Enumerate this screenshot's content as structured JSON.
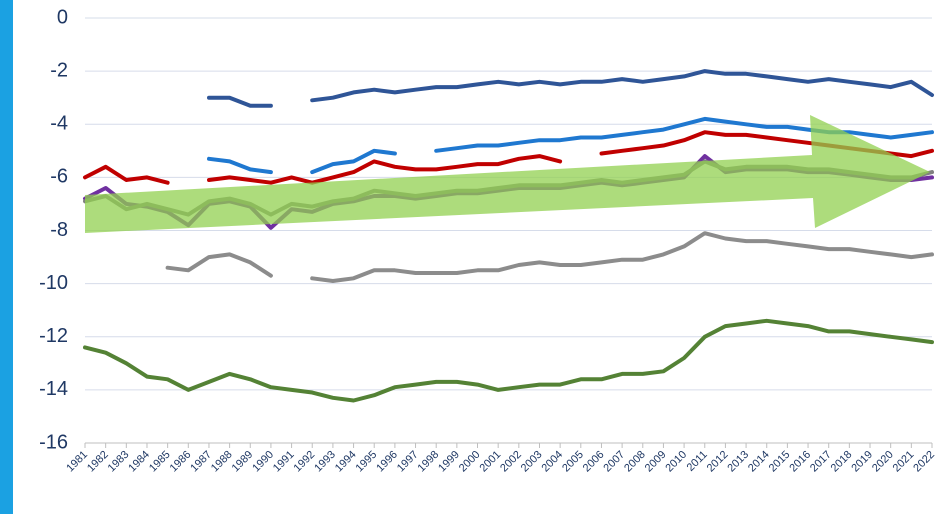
{
  "chart_data": {
    "type": "line",
    "categories": [
      "1981",
      "1982",
      "1983",
      "1984",
      "1985",
      "1986",
      "1987",
      "1988",
      "1989",
      "1990",
      "1991",
      "1992",
      "1993",
      "1994",
      "1995",
      "1996",
      "1997",
      "1998",
      "1999",
      "2000",
      "2001",
      "2002",
      "2003",
      "2004",
      "2005",
      "2006",
      "2007",
      "2008",
      "2009",
      "2010",
      "2011",
      "2012",
      "2013",
      "2014",
      "2015",
      "2016",
      "2017",
      "2018",
      "2019",
      "2020",
      "2021",
      "2022"
    ],
    "series": [
      {
        "color": "#2f5597",
        "values": [
          null,
          null,
          null,
          null,
          null,
          null,
          -3.0,
          -3.0,
          -3.3,
          -3.3,
          null,
          -3.1,
          -3.0,
          -2.8,
          -2.7,
          -2.8,
          -2.7,
          -2.6,
          -2.6,
          -2.5,
          -2.4,
          -2.5,
          -2.4,
          -2.5,
          -2.4,
          -2.4,
          -2.3,
          -2.4,
          -2.3,
          -2.2,
          -2.0,
          -2.1,
          -2.1,
          -2.2,
          -2.3,
          -2.4,
          -2.3,
          -2.4,
          -2.5,
          -2.6,
          -2.4,
          -2.9
        ]
      },
      {
        "color": "#1f78d0",
        "values": [
          null,
          null,
          null,
          null,
          null,
          null,
          -5.3,
          -5.4,
          -5.7,
          -5.8,
          null,
          -5.8,
          -5.5,
          -5.4,
          -5.0,
          -5.1,
          null,
          -5.0,
          -4.9,
          -4.8,
          -4.8,
          -4.7,
          -4.6,
          -4.6,
          -4.5,
          -4.5,
          -4.4,
          -4.3,
          -4.2,
          -4.0,
          -3.8,
          -3.9,
          -4.0,
          -4.1,
          -4.1,
          -4.2,
          -4.3,
          -4.3,
          -4.4,
          -4.5,
          -4.4,
          -4.3
        ]
      },
      {
        "color": "#c00000",
        "values": [
          -6.0,
          -5.6,
          -6.1,
          -6.0,
          -6.2,
          null,
          -6.1,
          -6.0,
          -6.1,
          -6.2,
          -6.0,
          -6.2,
          -6.0,
          -5.8,
          -5.4,
          -5.6,
          -5.7,
          -5.7,
          -5.6,
          -5.5,
          -5.5,
          -5.3,
          -5.2,
          -5.4,
          null,
          -5.1,
          -5.0,
          -4.9,
          -4.8,
          -4.6,
          -4.3,
          -4.4,
          -4.4,
          -4.5,
          -4.6,
          -4.7,
          -4.8,
          -4.9,
          -5.0,
          -5.1,
          -5.2,
          -5.0
        ]
      },
      {
        "color": "#7030a0",
        "values": [
          -6.8,
          -6.4,
          -7.0,
          -7.1,
          -7.3,
          -7.8,
          -7.0,
          -6.9,
          -7.1,
          -7.9,
          -7.2,
          -7.3,
          -7.0,
          -6.9,
          -6.7,
          -6.7,
          -6.8,
          -6.7,
          -6.6,
          -6.6,
          -6.5,
          -6.4,
          -6.4,
          -6.4,
          -6.3,
          -6.2,
          -6.3,
          -6.2,
          -6.1,
          -6.0,
          -5.2,
          -5.8,
          -5.7,
          -5.7,
          -5.7,
          -5.8,
          -5.8,
          -5.9,
          -6.0,
          -6.1,
          -6.1,
          -6.0
        ]
      },
      {
        "color": "#808080",
        "values": [
          -6.9,
          -6.7,
          -7.2,
          -7.0,
          -7.2,
          -7.4,
          -6.9,
          -6.8,
          -7.0,
          -7.4,
          -7.0,
          -7.1,
          -6.9,
          -6.8,
          -6.5,
          -6.6,
          -6.7,
          -6.6,
          -6.5,
          -6.5,
          -6.4,
          -6.3,
          -6.3,
          -6.3,
          -6.2,
          -6.1,
          -6.2,
          -6.1,
          -6.0,
          -5.9,
          -5.4,
          -5.7,
          -5.6,
          -5.6,
          -5.6,
          -5.7,
          -5.7,
          -5.8,
          -5.9,
          -6.0,
          -6.0,
          -5.8
        ]
      },
      {
        "color": "#8c8c8c",
        "values": [
          null,
          null,
          null,
          null,
          -9.4,
          -9.5,
          -9.0,
          -8.9,
          -9.2,
          -9.7,
          null,
          -9.8,
          -9.9,
          -9.8,
          -9.5,
          -9.5,
          -9.6,
          -9.6,
          -9.6,
          -9.5,
          -9.5,
          -9.3,
          -9.2,
          -9.3,
          -9.3,
          -9.2,
          -9.1,
          -9.1,
          -8.9,
          -8.6,
          -8.1,
          -8.3,
          -8.4,
          -8.4,
          -8.5,
          -8.6,
          -8.7,
          -8.7,
          -8.8,
          -8.9,
          -9.0,
          -8.9
        ]
      },
      {
        "color": "#548235",
        "values": [
          -12.4,
          -12.6,
          -13.0,
          -13.5,
          -13.6,
          -14.0,
          -13.7,
          -13.4,
          -13.6,
          -13.9,
          -14.0,
          -14.1,
          -14.3,
          -14.4,
          -14.2,
          -13.9,
          -13.8,
          -13.7,
          -13.7,
          -13.8,
          -14.0,
          -13.9,
          -13.8,
          -13.8,
          -13.6,
          -13.6,
          -13.4,
          -13.4,
          -13.3,
          -12.8,
          -12.0,
          -11.6,
          -11.5,
          -11.4,
          -11.5,
          -11.6,
          -11.8,
          -11.8,
          -11.9,
          -12.0,
          -12.1,
          -12.2
        ]
      }
    ],
    "ylim": [
      -16,
      0
    ],
    "yticks": [
      -16,
      -14,
      -12,
      -10,
      -8,
      -6,
      -4,
      -2,
      0
    ],
    "grid": true
  }
}
